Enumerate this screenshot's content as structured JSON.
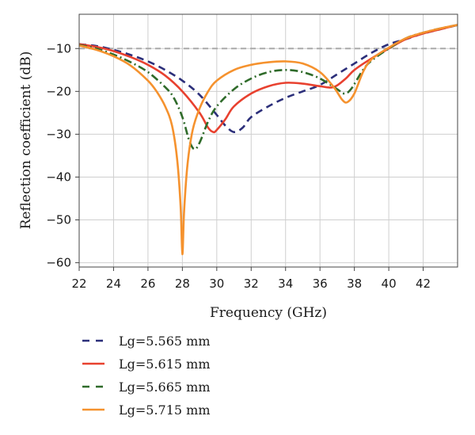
{
  "chart_data": {
    "type": "line",
    "title": "",
    "xlabel": "Frequency (GHz)",
    "ylabel": "Reflection coefficient (dB)",
    "xlim": [
      22,
      44
    ],
    "ylim": [
      -61,
      -2
    ],
    "xticks": [
      22,
      24,
      26,
      28,
      30,
      32,
      34,
      36,
      38,
      40,
      42
    ],
    "yticks": [
      -60,
      -50,
      -40,
      -30,
      -20,
      -10
    ],
    "xtick_labels": [
      "22",
      "24",
      "26",
      "28",
      "30",
      "32",
      "34",
      "36",
      "38",
      "40",
      "42"
    ],
    "ytick_labels": [
      "−60",
      "−50",
      "−40",
      "−30",
      "−20",
      "−10"
    ],
    "grid": true,
    "legend_position": "below",
    "reference_line": {
      "y": -10,
      "color": "#aaaaaa",
      "style": "dashed"
    },
    "series": [
      {
        "name": "Lg=5.565 mm",
        "color": "#2c2f7a",
        "style": "dashed",
        "x": [
          22,
          23,
          24,
          25,
          26,
          27,
          28,
          29,
          30,
          30.5,
          31,
          31.5,
          32,
          33,
          34,
          35,
          36,
          37,
          38,
          39,
          40,
          41,
          42,
          43,
          44
        ],
        "y": [
          -9,
          -9.4,
          -10.3,
          -11.5,
          -13,
          -15,
          -17.5,
          -20.8,
          -25.5,
          -28,
          -29.5,
          -28.5,
          -26,
          -23.5,
          -21.5,
          -20,
          -18.5,
          -16,
          -13.5,
          -11,
          -9,
          -7.8,
          -6.5,
          -5.5,
          -4.5
        ]
      },
      {
        "name": "Lg=5.615 mm",
        "color": "#e8412f",
        "style": "solid",
        "x": [
          22,
          23,
          24,
          25,
          26,
          27,
          28,
          29,
          29.5,
          29.8,
          30,
          30.5,
          31,
          32,
          33,
          34,
          35,
          36,
          36.8,
          37.5,
          38,
          39,
          40,
          41,
          42,
          43,
          44
        ],
        "y": [
          -9,
          -9.6,
          -10.6,
          -12,
          -13.8,
          -16.3,
          -20,
          -25,
          -28.5,
          -29.5,
          -29,
          -26.5,
          -23.5,
          -20.5,
          -18.8,
          -18,
          -18.2,
          -18.8,
          -19,
          -17,
          -15,
          -12.3,
          -10,
          -7.8,
          -6.5,
          -5.5,
          -4.5
        ]
      },
      {
        "name": "Lg=5.665 mm",
        "color": "#2f6b2a",
        "style": "dashdot",
        "x": [
          22,
          23,
          24,
          25,
          26,
          27,
          27.5,
          28,
          28.4,
          28.7,
          29,
          29.5,
          30,
          31,
          32,
          33,
          34,
          35,
          36,
          37,
          37.4,
          37.8,
          38.5,
          39,
          40,
          41,
          42,
          43,
          44
        ],
        "y": [
          -9.2,
          -10,
          -11.4,
          -13.2,
          -15.5,
          -19,
          -21.5,
          -26,
          -31.5,
          -33.5,
          -32,
          -27,
          -23.5,
          -19.5,
          -17,
          -15.5,
          -15,
          -15.5,
          -17,
          -19.5,
          -20.5,
          -19.5,
          -15,
          -12.8,
          -10,
          -7.6,
          -6.3,
          -5.3,
          -4.5
        ]
      },
      {
        "name": "Lg=5.715 mm",
        "color": "#f5922e",
        "style": "solid",
        "x": [
          22,
          23,
          24,
          25,
          26,
          26.5,
          27,
          27.4,
          27.7,
          27.9,
          28,
          28.1,
          28.3,
          28.6,
          29,
          29.5,
          30,
          31,
          32,
          33,
          34,
          35,
          36,
          36.8,
          37.3,
          37.6,
          38,
          38.5,
          39,
          40,
          41,
          42,
          43,
          44
        ],
        "y": [
          -9.3,
          -10.3,
          -11.8,
          -14,
          -17.5,
          -20,
          -23.5,
          -28,
          -36,
          -47,
          -58,
          -48,
          -37,
          -29,
          -24,
          -20,
          -17.5,
          -15,
          -13.8,
          -13.2,
          -13,
          -13.5,
          -15.5,
          -19,
          -22,
          -22.5,
          -20.5,
          -15.5,
          -12.5,
          -9.8,
          -7.6,
          -6.3,
          -5.3,
          -4.5
        ]
      }
    ]
  }
}
